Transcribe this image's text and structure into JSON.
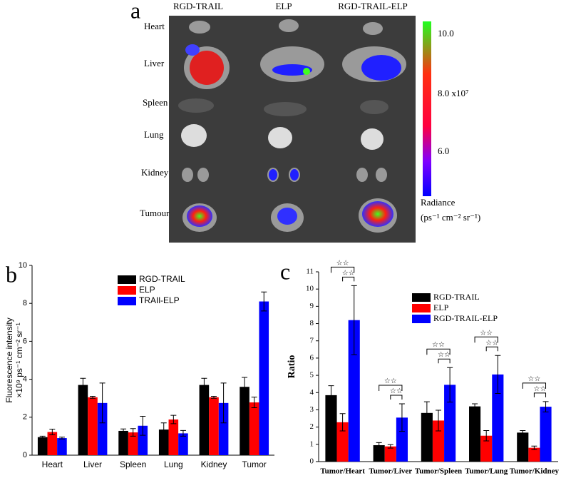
{
  "panel_a": {
    "letter": "a",
    "columns": [
      "RGD-TRAIL",
      "ELP",
      "RGD-TRAIL-ELP"
    ],
    "rows": [
      "Heart",
      "Liver",
      "Spleen",
      "Lung",
      "Kidney",
      "Tumour"
    ],
    "colorbar_ticks": [
      "10.0",
      "8.0 x10⁷",
      "6.0"
    ],
    "colorbar_title": "Radiance",
    "colorbar_units": "(ps⁻¹ cm⁻² sr⁻¹)"
  },
  "chart_data": [
    {
      "type": "bar",
      "letter": "b",
      "y_label": [
        "Fluorescence intensity",
        "×10⁹ ps⁻¹ cm⁻² sr⁻¹"
      ],
      "categories": [
        "Heart",
        "Liver",
        "Spleen",
        "Lung",
        "Kidney",
        "Tumor"
      ],
      "series": [
        {
          "name": "RGD-TRAIL",
          "color": "#000000",
          "values": [
            0.95,
            3.7,
            1.28,
            1.35,
            3.7,
            3.6
          ],
          "errors": [
            0.05,
            0.35,
            0.1,
            0.35,
            0.35,
            0.5
          ]
        },
        {
          "name": "ELP",
          "color": "#ff0000",
          "values": [
            1.22,
            3.05,
            1.2,
            1.88,
            3.05,
            2.78
          ],
          "errors": [
            0.15,
            0.05,
            0.2,
            0.22,
            0.05,
            0.28
          ]
        },
        {
          "name": "TRAIl-ELP",
          "color": "#0000ff",
          "values": [
            0.9,
            2.75,
            1.55,
            1.15,
            2.75,
            8.1
          ],
          "errors": [
            0.05,
            1.05,
            0.5,
            0.15,
            1.05,
            0.5
          ]
        }
      ],
      "ylim": [
        0,
        10
      ],
      "yticks": [
        0,
        2,
        4,
        6,
        8,
        10
      ]
    },
    {
      "type": "bar",
      "letter": "c",
      "y_label": [
        "Ratio"
      ],
      "categories": [
        "Tumor/Heart",
        "Tumor/Liver",
        "Tumor/Spleen",
        "Tumor/Lung",
        "Tumor/Kidney"
      ],
      "series": [
        {
          "name": "RGD-TRAIL",
          "color": "#000000",
          "values": [
            3.85,
            0.95,
            2.82,
            3.2,
            1.68
          ],
          "errors": [
            0.55,
            0.15,
            0.65,
            0.15,
            0.12
          ]
        },
        {
          "name": "ELP",
          "color": "#ff0000",
          "values": [
            2.28,
            0.88,
            2.38,
            1.5,
            0.8
          ],
          "errors": [
            0.5,
            0.1,
            0.6,
            0.3,
            0.1
          ]
        },
        {
          "name": "RGD-TRAIL-ELP",
          "color": "#0000ff",
          "values": [
            8.2,
            2.55,
            4.45,
            5.05,
            3.18
          ],
          "errors": [
            2.0,
            0.8,
            1.0,
            1.1,
            0.3
          ]
        }
      ],
      "ylim": [
        0,
        11
      ],
      "yticks": [
        0,
        1,
        2,
        3,
        4,
        5,
        6,
        7,
        8,
        9,
        10,
        11
      ],
      "significance_label": "☆☆"
    }
  ]
}
